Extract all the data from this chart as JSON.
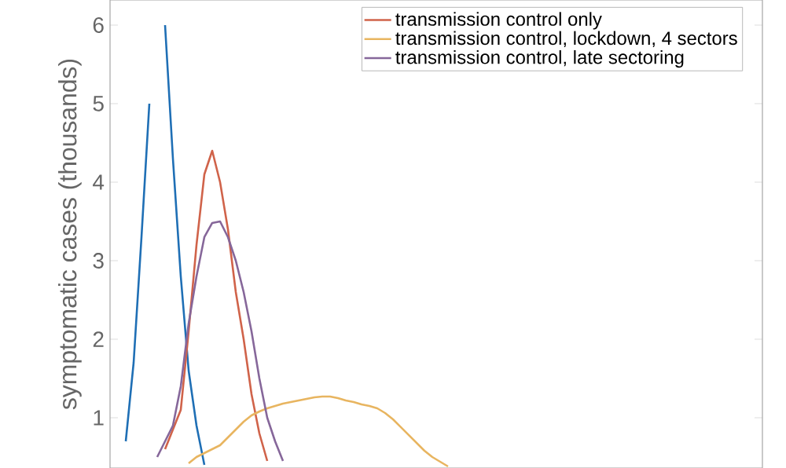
{
  "chart_data": {
    "type": "line",
    "ylabel": "symptomatic cases (thousands)",
    "categories": [
      null,
      null,
      null,
      null,
      null,
      null,
      null,
      null,
      null,
      null,
      null,
      null,
      null,
      null,
      null,
      null,
      null,
      null,
      null,
      null,
      null,
      null,
      null,
      null,
      null,
      null,
      null,
      null,
      null,
      null,
      null,
      null,
      null,
      null,
      null,
      null,
      null,
      null,
      null,
      null,
      null,
      null,
      null
    ],
    "series": [
      {
        "color": "#1f6fb5",
        "values": [
          0.7,
          1.7,
          3.3,
          5.0,
          null,
          6.0,
          4.3,
          2.8,
          1.6,
          0.9,
          0.4,
          null,
          null,
          null,
          null,
          null,
          null,
          null,
          null,
          null,
          null,
          null,
          null,
          null,
          null,
          null,
          null,
          null,
          null,
          null,
          null,
          null,
          null,
          null,
          null,
          null,
          null,
          null,
          null,
          null,
          null,
          null,
          null
        ]
      },
      {
        "name": "transmission control only",
        "color": "#d0634a",
        "values": [
          null,
          null,
          null,
          null,
          null,
          0.6,
          0.85,
          1.1,
          2.1,
          3.2,
          4.1,
          4.4,
          4.0,
          3.4,
          2.6,
          2.0,
          1.3,
          0.8,
          0.45,
          null,
          null,
          null,
          null,
          null,
          null,
          null,
          null,
          null,
          null,
          null,
          null,
          null,
          null,
          null,
          null,
          null,
          null,
          null,
          null,
          null,
          null,
          null,
          null
        ]
      },
      {
        "name": "transmission control, lockdown, 4 sectors",
        "color": "#e8b560",
        "values": [
          null,
          null,
          null,
          null,
          null,
          null,
          null,
          null,
          0.42,
          0.5,
          0.55,
          0.6,
          0.65,
          0.75,
          0.85,
          0.95,
          1.03,
          1.08,
          1.12,
          1.15,
          1.18,
          1.2,
          1.22,
          1.24,
          1.26,
          1.27,
          1.27,
          1.25,
          1.22,
          1.2,
          1.17,
          1.15,
          1.12,
          1.06,
          0.98,
          0.88,
          0.78,
          0.68,
          0.58,
          0.5,
          0.44,
          0.38,
          null
        ]
      },
      {
        "name": "transmission control, late sectoring",
        "color": "#86679a",
        "values": [
          null,
          null,
          null,
          null,
          0.5,
          0.7,
          0.9,
          1.4,
          2.2,
          2.8,
          3.3,
          3.48,
          3.5,
          3.3,
          3.0,
          2.6,
          2.1,
          1.5,
          1.0,
          0.7,
          0.45,
          null,
          null,
          null,
          null,
          null,
          null,
          null,
          null,
          null,
          null,
          null,
          null,
          null,
          null,
          null,
          null,
          null,
          null,
          null,
          null,
          null,
          null
        ]
      }
    ],
    "ylim": [
      0.36,
      6.32
    ],
    "yticks": [
      1,
      2,
      3,
      4,
      5,
      6
    ],
    "tick_labels": "y",
    "legend": "top right",
    "grid": false,
    "marker": "none",
    "line_style": "solid"
  }
}
